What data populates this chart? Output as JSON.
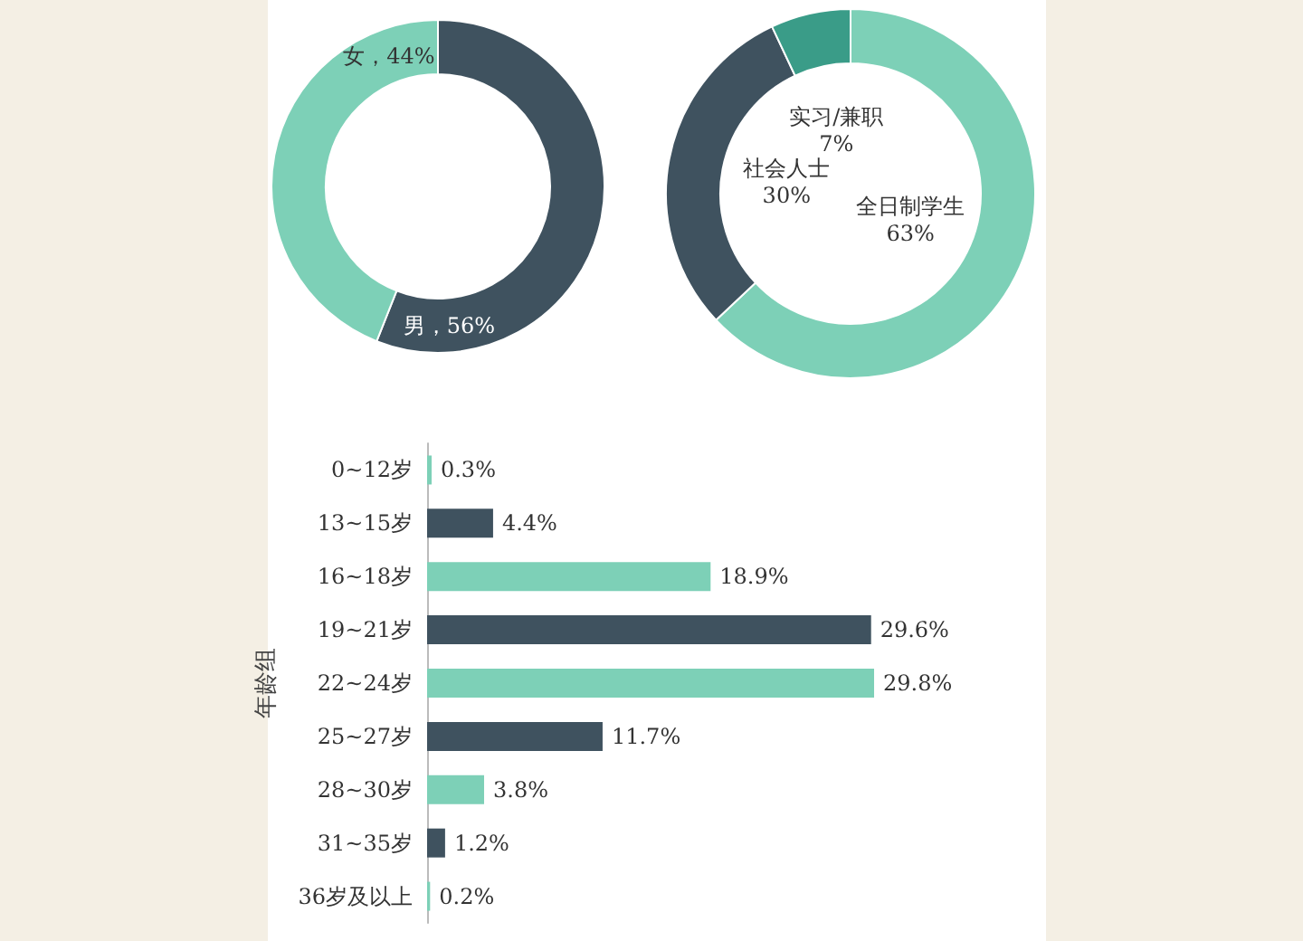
{
  "chart_data": [
    {
      "type": "donut",
      "categories": [
        "男",
        "女"
      ],
      "values": [
        56,
        44
      ],
      "colors": [
        "#3f525f",
        "#7dd0b7"
      ],
      "value_labels": [
        "56%",
        "44%"
      ]
    },
    {
      "type": "donut",
      "categories": [
        "全日制学生",
        "社会人士",
        "实习/兼职"
      ],
      "values": [
        63,
        30,
        7
      ],
      "colors": [
        "#7dd0b7",
        "#3f525f",
        "#3a9c88"
      ],
      "value_labels": [
        "63%",
        "30%",
        "7%"
      ]
    },
    {
      "type": "bar",
      "orientation": "horizontal",
      "ylabel": "年龄组",
      "categories": [
        "0~12岁",
        "13~15岁",
        "16~18岁",
        "19~21岁",
        "22~24岁",
        "25~27岁",
        "28~30岁",
        "31~35岁",
        "36岁及以上"
      ],
      "values": [
        0.3,
        4.4,
        18.9,
        29.6,
        29.8,
        11.7,
        3.8,
        1.2,
        0.2
      ],
      "colors": [
        "#7dd0b7",
        "#3f525f",
        "#7dd0b7",
        "#3f525f",
        "#7dd0b7",
        "#3f525f",
        "#7dd0b7",
        "#3f525f",
        "#7dd0b7"
      ],
      "value_labels": [
        "0.3%",
        "4.4%",
        "18.9%",
        "29.6%",
        "29.8%",
        "11.7%",
        "3.8%",
        "1.2%",
        "0.2%"
      ]
    }
  ]
}
